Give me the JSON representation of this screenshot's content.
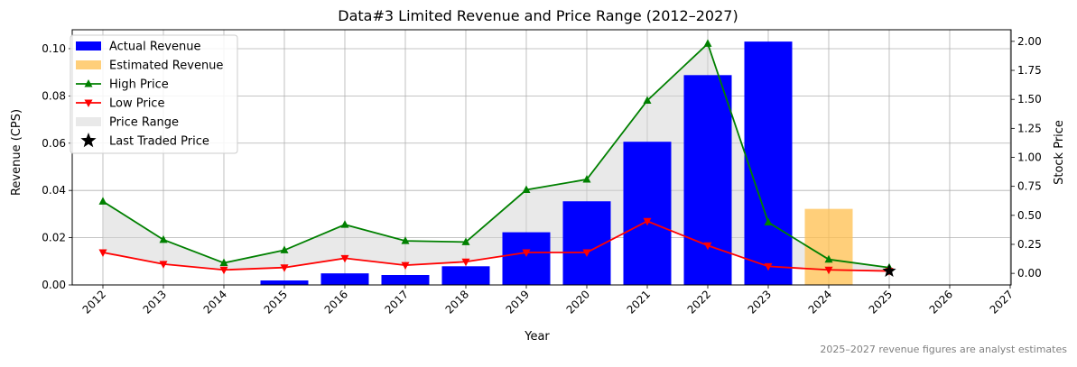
{
  "chart_data": {
    "type": "bar+line",
    "title": "Data#3 Limited Revenue and Price Range (2012–2027)",
    "xlabel": "Year",
    "ylabel_left": "Revenue (CPS)",
    "ylabel_right": "Stock Price",
    "footnote": "2025–2027 revenue figures are analyst estimates",
    "years": [
      "2012",
      "2013",
      "2014",
      "2015",
      "2016",
      "2017",
      "2018",
      "2019",
      "2020",
      "2021",
      "2022",
      "2023",
      "2024",
      "2025",
      "2026",
      "2027"
    ],
    "ylim_left": [
      0,
      0.108
    ],
    "ylim_right": [
      -0.1,
      2.1
    ],
    "left_ticks": [
      "0.00",
      "0.02",
      "0.04",
      "0.06",
      "0.08",
      "0.10"
    ],
    "right_ticks": [
      "0.00",
      "0.25",
      "0.50",
      "0.75",
      "1.00",
      "1.25",
      "1.50",
      "1.75",
      "2.00"
    ],
    "grid": true,
    "legend_position": "top-left",
    "series": [
      {
        "name": "Actual Revenue",
        "kind": "bar",
        "color": "#0000ff",
        "values": [
          null,
          null,
          null,
          0.0019,
          0.0049,
          0.0042,
          0.0079,
          0.0223,
          0.0354,
          0.0606,
          0.0888,
          0.103,
          null,
          null,
          null,
          null
        ]
      },
      {
        "name": "Estimated Revenue",
        "kind": "bar",
        "color": "#ffbf4d",
        "values": [
          null,
          null,
          null,
          null,
          null,
          null,
          null,
          null,
          null,
          null,
          null,
          null,
          0.0322,
          null,
          null,
          null
        ]
      },
      {
        "name": "High Price",
        "kind": "line",
        "color": "#008000",
        "marker": "triangle-up",
        "values": [
          0.62,
          0.29,
          0.09,
          0.2,
          0.42,
          0.28,
          0.27,
          0.72,
          0.81,
          1.49,
          1.98,
          0.44,
          0.12,
          0.05,
          null,
          null
        ]
      },
      {
        "name": "Low Price",
        "kind": "line",
        "color": "#ff0000",
        "marker": "triangle-down",
        "values": [
          0.18,
          0.08,
          0.03,
          0.05,
          0.13,
          0.07,
          0.1,
          0.18,
          0.18,
          0.45,
          0.24,
          0.06,
          0.03,
          0.02,
          null,
          null
        ]
      },
      {
        "name": "Price Range",
        "kind": "fill",
        "color": "#d3d3d3"
      },
      {
        "name": "Last Traded Price",
        "kind": "marker",
        "color": "#000000",
        "marker": "star",
        "x": "2025",
        "value": 0.02
      }
    ]
  }
}
